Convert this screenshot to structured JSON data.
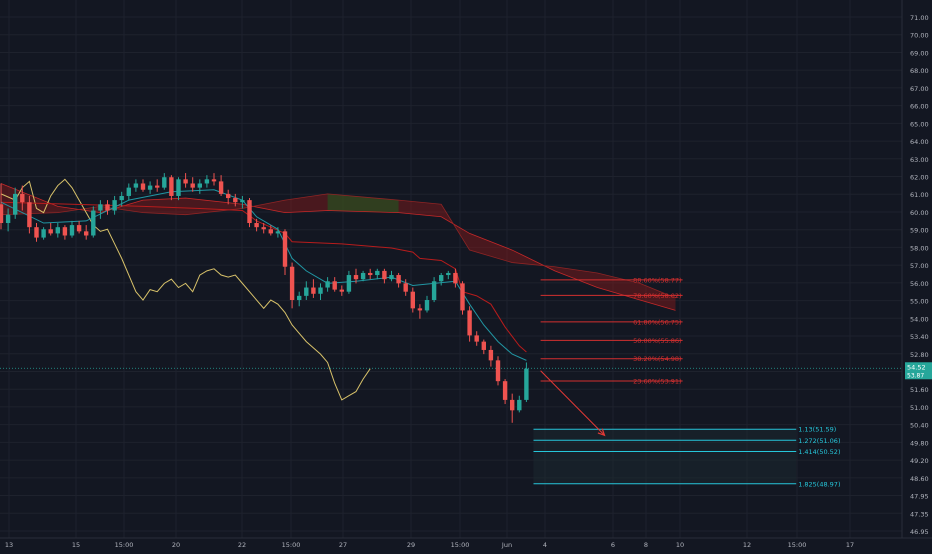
{
  "colors": {
    "background": "#131722",
    "grid": "#1e222d",
    "axis_text": "#b2b5be",
    "candle_up": "#26a69a",
    "candle_down": "#ef5350",
    "lagging_span": "#d8c26a",
    "base_line": "#b71c1c",
    "conversion_line": "#2196a3",
    "cloud_bear": "#8b1a1a",
    "cloud_bull": "#1b5e20",
    "fib_retracement": "#d32f2f",
    "fib_extension": "#26c6da",
    "projection_arrow": "#e53935",
    "price_label_bg": "#26a69a"
  },
  "chart_data": {
    "type": "candlestick",
    "title": "",
    "xlabel": "",
    "ylabel": "",
    "x_tick_labels": [
      "13",
      "15",
      "15:00",
      "20",
      "22",
      "15:00",
      "27",
      "29",
      "15:00",
      "Jun",
      "4",
      "6",
      "8",
      "10",
      "12",
      "15:00",
      "17"
    ],
    "y_tick_labels": [
      "71.00",
      "70.00",
      "69.00",
      "68.00",
      "67.00",
      "66.00",
      "65.00",
      "64.00",
      "63.00",
      "62.00",
      "61.00",
      "60.00",
      "59.00",
      "58.00",
      "57.00",
      "56.00",
      "55.00",
      "54.00",
      "53.40",
      "52.80",
      "52.20",
      "51.60",
      "51.00",
      "50.40",
      "49.80",
      "49.20",
      "48.60",
      "47.95",
      "47.35",
      "46.95"
    ],
    "ylim": [
      46.7,
      71.4
    ],
    "grid": true,
    "current_price": "54.52",
    "current_price_sub": "53.87",
    "candles": [
      {
        "o": 62.4,
        "h": 63.4,
        "l": 61.2,
        "c": 61.5
      },
      {
        "o": 61.5,
        "h": 62.2,
        "l": 61.1,
        "c": 61.9
      },
      {
        "o": 61.9,
        "h": 63.2,
        "l": 61.7,
        "c": 62.9
      },
      {
        "o": 62.9,
        "h": 63.3,
        "l": 62.1,
        "c": 62.5
      },
      {
        "o": 62.5,
        "h": 62.8,
        "l": 61.0,
        "c": 61.3
      },
      {
        "o": 61.3,
        "h": 61.5,
        "l": 60.6,
        "c": 60.8
      },
      {
        "o": 60.8,
        "h": 61.3,
        "l": 60.7,
        "c": 61.2
      },
      {
        "o": 61.2,
        "h": 61.5,
        "l": 60.9,
        "c": 61.0
      },
      {
        "o": 61.0,
        "h": 61.5,
        "l": 60.8,
        "c": 61.3
      },
      {
        "o": 61.3,
        "h": 61.4,
        "l": 60.7,
        "c": 60.9
      },
      {
        "o": 60.9,
        "h": 61.6,
        "l": 60.8,
        "c": 61.4
      },
      {
        "o": 61.4,
        "h": 61.6,
        "l": 61.0,
        "c": 61.1
      },
      {
        "o": 61.1,
        "h": 61.4,
        "l": 60.7,
        "c": 60.9
      },
      {
        "o": 60.9,
        "h": 62.3,
        "l": 60.8,
        "c": 62.1
      },
      {
        "o": 62.1,
        "h": 62.6,
        "l": 61.7,
        "c": 62.4
      },
      {
        "o": 62.4,
        "h": 62.6,
        "l": 61.9,
        "c": 62.1
      },
      {
        "o": 62.1,
        "h": 62.8,
        "l": 61.9,
        "c": 62.6
      },
      {
        "o": 62.6,
        "h": 63.0,
        "l": 62.3,
        "c": 62.8
      },
      {
        "o": 62.8,
        "h": 63.4,
        "l": 62.6,
        "c": 63.2
      },
      {
        "o": 63.2,
        "h": 63.6,
        "l": 63.0,
        "c": 63.4
      },
      {
        "o": 63.4,
        "h": 63.6,
        "l": 63.0,
        "c": 63.1
      },
      {
        "o": 63.1,
        "h": 63.5,
        "l": 62.9,
        "c": 63.3
      },
      {
        "o": 63.3,
        "h": 63.6,
        "l": 63.0,
        "c": 63.2
      },
      {
        "o": 63.2,
        "h": 63.9,
        "l": 63.1,
        "c": 63.7
      },
      {
        "o": 63.7,
        "h": 63.8,
        "l": 62.6,
        "c": 62.8
      },
      {
        "o": 62.8,
        "h": 63.7,
        "l": 62.6,
        "c": 63.6
      },
      {
        "o": 63.6,
        "h": 63.9,
        "l": 63.2,
        "c": 63.4
      },
      {
        "o": 63.4,
        "h": 63.7,
        "l": 63.0,
        "c": 63.2
      },
      {
        "o": 63.2,
        "h": 63.6,
        "l": 62.9,
        "c": 63.4
      },
      {
        "o": 63.4,
        "h": 63.8,
        "l": 63.2,
        "c": 63.6
      },
      {
        "o": 63.6,
        "h": 63.9,
        "l": 63.3,
        "c": 63.5
      },
      {
        "o": 63.5,
        "h": 63.8,
        "l": 62.8,
        "c": 62.9
      },
      {
        "o": 62.9,
        "h": 63.1,
        "l": 62.4,
        "c": 62.7
      },
      {
        "o": 62.7,
        "h": 62.9,
        "l": 62.3,
        "c": 62.5
      },
      {
        "o": 62.5,
        "h": 62.8,
        "l": 62.2,
        "c": 62.6
      },
      {
        "o": 62.6,
        "h": 62.7,
        "l": 61.3,
        "c": 61.5
      },
      {
        "o": 61.5,
        "h": 61.7,
        "l": 61.1,
        "c": 61.3
      },
      {
        "o": 61.3,
        "h": 61.5,
        "l": 61.0,
        "c": 61.2
      },
      {
        "o": 61.2,
        "h": 61.4,
        "l": 60.9,
        "c": 61.0
      },
      {
        "o": 61.0,
        "h": 61.3,
        "l": 60.8,
        "c": 61.1
      },
      {
        "o": 61.1,
        "h": 61.2,
        "l": 59.0,
        "c": 59.4
      },
      {
        "o": 59.4,
        "h": 59.6,
        "l": 57.4,
        "c": 57.8
      },
      {
        "o": 57.8,
        "h": 58.2,
        "l": 57.5,
        "c": 58.0
      },
      {
        "o": 58.0,
        "h": 58.7,
        "l": 57.8,
        "c": 58.4
      },
      {
        "o": 58.4,
        "h": 58.8,
        "l": 57.9,
        "c": 58.1
      },
      {
        "o": 58.1,
        "h": 58.6,
        "l": 57.8,
        "c": 58.4
      },
      {
        "o": 58.4,
        "h": 58.9,
        "l": 58.2,
        "c": 58.7
      },
      {
        "o": 58.7,
        "h": 58.9,
        "l": 58.2,
        "c": 58.3
      },
      {
        "o": 58.3,
        "h": 58.5,
        "l": 58.0,
        "c": 58.2
      },
      {
        "o": 58.2,
        "h": 59.2,
        "l": 58.1,
        "c": 59.0
      },
      {
        "o": 59.0,
        "h": 59.3,
        "l": 58.6,
        "c": 58.8
      },
      {
        "o": 58.8,
        "h": 59.2,
        "l": 58.7,
        "c": 59.1
      },
      {
        "o": 59.1,
        "h": 59.3,
        "l": 58.8,
        "c": 59.0
      },
      {
        "o": 59.0,
        "h": 59.3,
        "l": 58.8,
        "c": 59.2
      },
      {
        "o": 59.2,
        "h": 59.3,
        "l": 58.6,
        "c": 58.8
      },
      {
        "o": 58.8,
        "h": 59.2,
        "l": 58.7,
        "c": 59.0
      },
      {
        "o": 59.0,
        "h": 59.1,
        "l": 58.4,
        "c": 58.6
      },
      {
        "o": 58.6,
        "h": 58.8,
        "l": 58.0,
        "c": 58.2
      },
      {
        "o": 58.2,
        "h": 58.4,
        "l": 57.2,
        "c": 57.4
      },
      {
        "o": 57.4,
        "h": 57.6,
        "l": 56.9,
        "c": 57.3
      },
      {
        "o": 57.3,
        "h": 58.0,
        "l": 57.2,
        "c": 57.8
      },
      {
        "o": 57.8,
        "h": 58.9,
        "l": 57.7,
        "c": 58.7
      },
      {
        "o": 58.7,
        "h": 59.1,
        "l": 58.5,
        "c": 59.0
      },
      {
        "o": 59.0,
        "h": 59.2,
        "l": 58.8,
        "c": 59.1
      },
      {
        "o": 59.1,
        "h": 59.3,
        "l": 58.4,
        "c": 58.6
      },
      {
        "o": 58.6,
        "h": 58.7,
        "l": 57.1,
        "c": 57.3
      },
      {
        "o": 57.3,
        "h": 57.5,
        "l": 55.8,
        "c": 56.1
      },
      {
        "o": 56.1,
        "h": 56.3,
        "l": 55.6,
        "c": 55.8
      },
      {
        "o": 55.8,
        "h": 55.9,
        "l": 55.2,
        "c": 55.4
      },
      {
        "o": 55.4,
        "h": 55.6,
        "l": 54.6,
        "c": 54.9
      },
      {
        "o": 54.9,
        "h": 55.1,
        "l": 53.7,
        "c": 53.9
      },
      {
        "o": 53.9,
        "h": 54.0,
        "l": 52.8,
        "c": 53.0
      },
      {
        "o": 53.0,
        "h": 53.3,
        "l": 51.9,
        "c": 52.5
      },
      {
        "o": 52.5,
        "h": 53.2,
        "l": 52.4,
        "c": 53.0
      },
      {
        "o": 53.0,
        "h": 54.8,
        "l": 52.9,
        "c": 54.5
      }
    ],
    "lagging_span": [
      [
        0,
        62.9
      ],
      [
        2,
        62.6
      ],
      [
        3,
        63.2
      ],
      [
        4,
        63.5
      ],
      [
        5,
        62.2
      ],
      [
        6,
        62.0
      ],
      [
        7,
        62.8
      ],
      [
        8,
        63.3
      ],
      [
        9,
        63.6
      ],
      [
        10,
        63.2
      ],
      [
        11,
        62.6
      ],
      [
        12,
        62.0
      ],
      [
        13,
        61.4
      ],
      [
        14,
        61.1
      ],
      [
        15,
        61.2
      ],
      [
        16,
        60.5
      ],
      [
        17,
        59.8
      ],
      [
        18,
        59.0
      ],
      [
        19,
        58.2
      ],
      [
        20,
        57.8
      ],
      [
        21,
        58.3
      ],
      [
        22,
        58.2
      ],
      [
        23,
        58.6
      ],
      [
        24,
        58.8
      ],
      [
        25,
        58.4
      ],
      [
        26,
        58.6
      ],
      [
        27,
        58.2
      ],
      [
        28,
        59.0
      ],
      [
        29,
        59.2
      ],
      [
        30,
        59.3
      ],
      [
        31,
        59.0
      ],
      [
        32,
        58.9
      ],
      [
        33,
        59.0
      ],
      [
        34,
        58.6
      ],
      [
        35,
        58.2
      ],
      [
        36,
        57.8
      ],
      [
        37,
        57.4
      ],
      [
        38,
        57.8
      ],
      [
        39,
        57.6
      ],
      [
        40,
        57.2
      ],
      [
        41,
        56.6
      ],
      [
        42,
        56.2
      ],
      [
        43,
        55.8
      ],
      [
        44,
        55.5
      ],
      [
        45,
        55.2
      ],
      [
        46,
        54.8
      ],
      [
        47,
        53.8
      ],
      [
        48,
        53.0
      ],
      [
        49,
        53.2
      ],
      [
        50,
        53.4
      ],
      [
        51,
        54.0
      ],
      [
        52,
        54.5
      ]
    ],
    "base_line": [
      [
        0,
        62.5
      ],
      [
        10,
        62.4
      ],
      [
        20,
        62.3
      ],
      [
        28,
        62.2
      ],
      [
        34,
        62.1
      ],
      [
        36,
        61.6
      ],
      [
        38,
        61.3
      ],
      [
        40,
        61.0
      ],
      [
        41,
        60.6
      ],
      [
        48,
        60.5
      ],
      [
        55,
        60.3
      ],
      [
        58,
        60.1
      ],
      [
        59,
        59.8
      ],
      [
        62,
        59.7
      ],
      [
        64,
        59.3
      ],
      [
        65,
        58.2
      ],
      [
        67,
        58.0
      ],
      [
        69,
        57.6
      ],
      [
        71,
        56.5
      ],
      [
        73,
        55.6
      ],
      [
        74,
        55.3
      ]
    ],
    "conversion_line": [
      [
        0,
        62.5
      ],
      [
        6,
        61.5
      ],
      [
        12,
        61.6
      ],
      [
        18,
        62.6
      ],
      [
        24,
        63.0
      ],
      [
        30,
        63.1
      ],
      [
        34,
        62.6
      ],
      [
        36,
        61.8
      ],
      [
        39,
        61.2
      ],
      [
        41,
        59.8
      ],
      [
        43,
        59.2
      ],
      [
        46,
        58.6
      ],
      [
        50,
        58.7
      ],
      [
        55,
        58.9
      ],
      [
        58,
        58.5
      ],
      [
        61,
        58.6
      ],
      [
        64,
        58.7
      ],
      [
        66,
        57.6
      ],
      [
        68,
        56.6
      ],
      [
        70,
        55.8
      ],
      [
        72,
        55.2
      ],
      [
        74,
        54.9
      ]
    ],
    "cloud": {
      "span_a": [
        [
          0,
          63.4
        ],
        [
          8,
          62.3
        ],
        [
          14,
          62.0
        ],
        [
          20,
          62.6
        ],
        [
          26,
          62.7
        ],
        [
          34,
          62.4
        ],
        [
          40,
          62.0
        ],
        [
          46,
          62.1
        ],
        [
          56,
          62.0
        ],
        [
          62,
          61.8
        ],
        [
          66,
          61.0
        ],
        [
          72,
          60.2
        ],
        [
          78,
          59.2
        ],
        [
          84,
          58.4
        ],
        [
          90,
          57.8
        ],
        [
          95,
          57.3
        ]
      ],
      "span_b": [
        [
          0,
          61.9
        ],
        [
          8,
          62.0
        ],
        [
          14,
          62.3
        ],
        [
          20,
          62.0
        ],
        [
          26,
          61.9
        ],
        [
          34,
          62.2
        ],
        [
          40,
          62.6
        ],
        [
          46,
          62.9
        ],
        [
          56,
          62.6
        ],
        [
          62,
          62.4
        ],
        [
          66,
          60.2
        ],
        [
          72,
          59.6
        ],
        [
          78,
          59.4
        ],
        [
          84,
          59.1
        ],
        [
          90,
          58.6
        ],
        [
          95,
          57.9
        ]
      ]
    },
    "fib_retracement": {
      "anchor_index": 76,
      "end_index": 96,
      "levels": [
        {
          "label": "88.60%(58.77)",
          "value": 58.77
        },
        {
          "label": "78.60%(58.02)",
          "value": 58.02
        },
        {
          "label": "61.80%(56.75)",
          "value": 56.75
        },
        {
          "label": "50.00%(55.86)",
          "value": 55.86
        },
        {
          "label": "38.20%(54.98)",
          "value": 54.98
        },
        {
          "label": "23.60%(53.91)",
          "value": 53.91
        }
      ]
    },
    "fib_extension": {
      "start_index": 75,
      "end_index": 112,
      "levels": [
        {
          "label": "1.13(51.59)",
          "value": 51.59
        },
        {
          "label": "1.272(51.06)",
          "value": 51.06
        },
        {
          "label": "1.414(50.52)",
          "value": 50.52
        },
        {
          "label": "1.825(48.97)",
          "value": 48.97
        }
      ]
    },
    "projection_arrow": {
      "from": [
        76,
        54.4
      ],
      "to": [
        85,
        51.3
      ]
    }
  }
}
